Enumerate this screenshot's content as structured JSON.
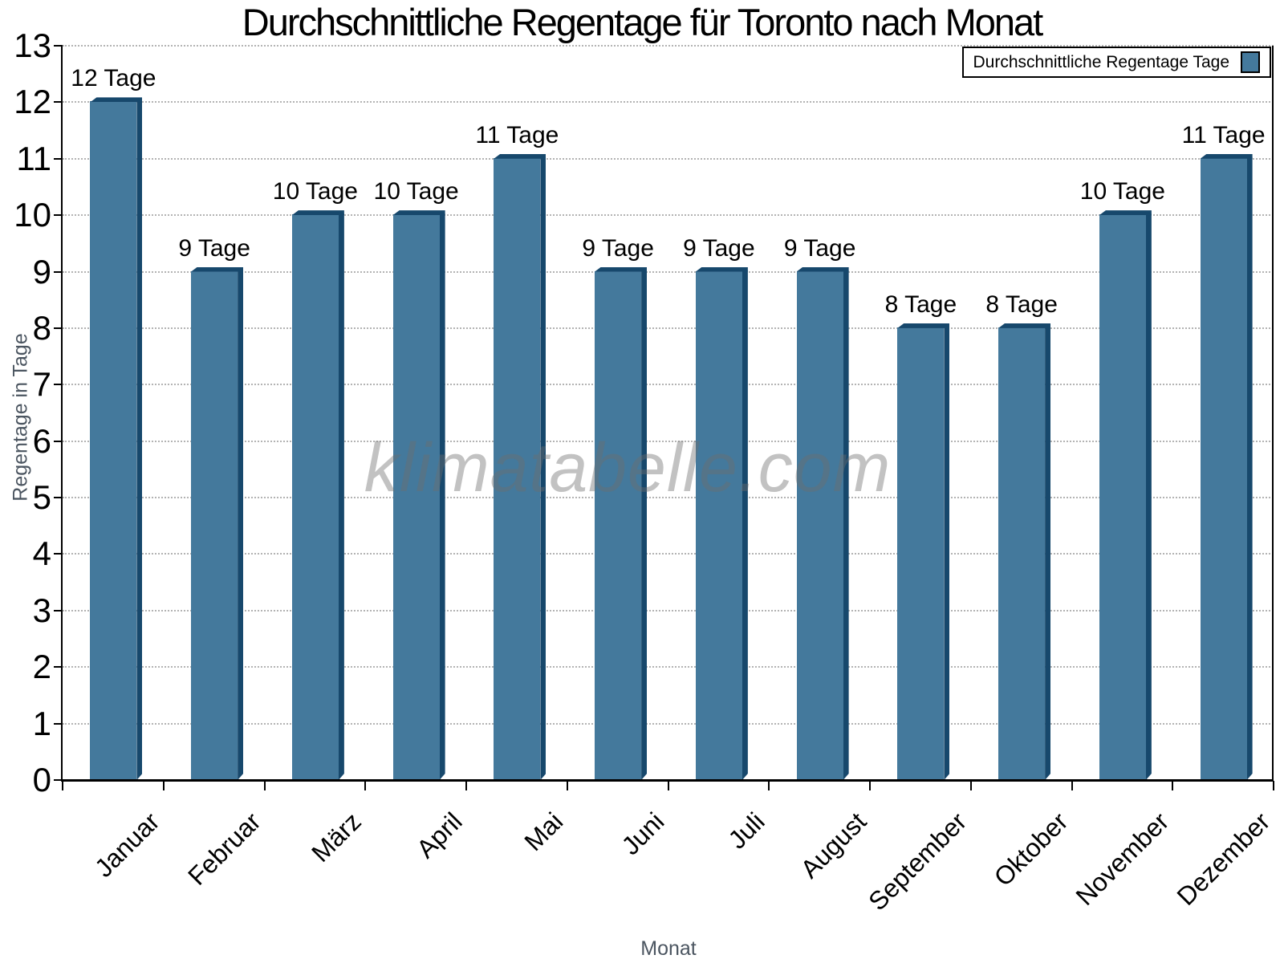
{
  "watermark": "klimatabelle.com",
  "chart_data": {
    "type": "bar",
    "title": "Durchschnittliche Regentage für Toronto nach Monat",
    "xlabel": "Monat",
    "ylabel": "Regentage in Tage",
    "legend_label": "Durchschnittliche Regentage Tage",
    "legend_position": "top-right",
    "grid": "horizontal-dotted",
    "categories": [
      "Januar",
      "Februar",
      "März",
      "April",
      "Mai",
      "Juni",
      "Juli",
      "August",
      "September",
      "Oktober",
      "November",
      "Dezember"
    ],
    "values": [
      12,
      9,
      10,
      10,
      11,
      9,
      9,
      9,
      8,
      8,
      10,
      11
    ],
    "bar_labels": [
      "12 Tage",
      "9 Tage",
      "10 Tage",
      "10 Tage",
      "11 Tage",
      "9 Tage",
      "9 Tage",
      "9 Tage",
      "8 Tage",
      "8 Tage",
      "10 Tage",
      "11 Tage"
    ],
    "ylim": [
      0,
      13
    ],
    "ytick_step": 1,
    "yticks": [
      0,
      1,
      2,
      3,
      4,
      5,
      6,
      7,
      8,
      9,
      10,
      11,
      12,
      13
    ],
    "colors": {
      "bar_face": "#44799c",
      "bar_edge_dark": "#17486c",
      "grid": "#b3b3b3",
      "axis": "#000000",
      "axis_title": "#4b5560",
      "watermark_gray": "#6e6e6e"
    }
  }
}
